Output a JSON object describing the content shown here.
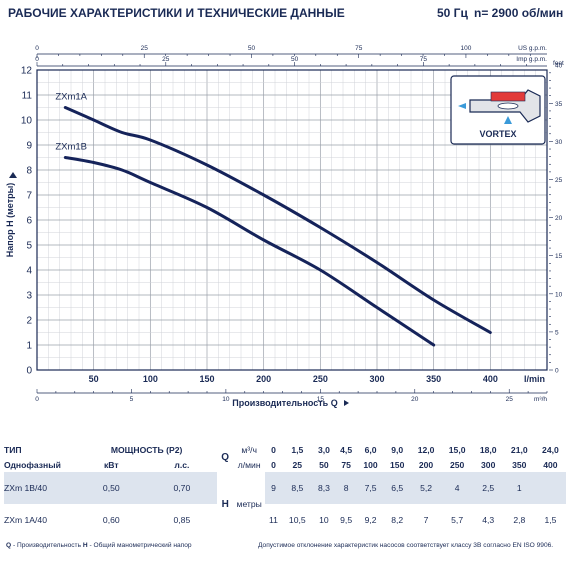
{
  "header": {
    "title": "РАБОЧИЕ ХАРАКТЕРИСТИКИ И ТЕХНИЧЕСКИЕ ДАННЫЕ",
    "freq": "50 Гц",
    "speed": "n= 2900 об/мин"
  },
  "chart_data": {
    "type": "line",
    "xlabel": "Производительность Q",
    "ylabel": "Напор H (метры)",
    "x_unit": "l/min",
    "xlim": [
      0,
      450
    ],
    "ylim": [
      0,
      12
    ],
    "x_ticks": [
      50,
      100,
      150,
      200,
      250,
      300,
      350,
      400
    ],
    "y_ticks": [
      0,
      1,
      2,
      3,
      4,
      5,
      6,
      7,
      8,
      9,
      10,
      11,
      12
    ],
    "grid": true,
    "series": [
      {
        "name": "ZXm1A",
        "x": [
          25,
          50,
          75,
          100,
          150,
          200,
          250,
          300,
          350,
          400
        ],
        "y": [
          10.5,
          10,
          9.5,
          9.2,
          8.2,
          7,
          5.7,
          4.3,
          2.8,
          1.5
        ]
      },
      {
        "name": "ZXm1B",
        "x": [
          25,
          50,
          75,
          100,
          150,
          200,
          250,
          300,
          350
        ],
        "y": [
          8.5,
          8.3,
          8,
          7.5,
          6.5,
          5.2,
          4,
          2.5,
          1
        ]
      }
    ],
    "secondary_axes": {
      "top_us_gpm": {
        "label": "US g.p.m.",
        "ticks": [
          "0",
          "25",
          "50",
          "75",
          "100"
        ],
        "max": 118.9
      },
      "imp_gpm": {
        "label": "Imp g.p.m.",
        "ticks": [
          "0",
          "25",
          "50",
          "75"
        ],
        "max": 99.0
      },
      "feet": {
        "label": "feet",
        "ticks": [
          "0",
          "5",
          "10",
          "15",
          "20",
          "25",
          "30",
          "35",
          "40"
        ],
        "max": 39.37
      },
      "bottom_m3h": {
        "label": "m³/h",
        "ticks": [
          "0",
          "5",
          "10",
          "15",
          "20",
          "25"
        ],
        "max": 27
      }
    },
    "inset_label": "VORTEX"
  },
  "table": {
    "type_header": "ТИП",
    "power_header": "МОЩНОСТЬ (P2)",
    "q_symbol": "Q",
    "q_unit_m3h": "м³/ч",
    "q_unit_lmin": "л/мин",
    "single_phase": "Однофазный",
    "kw": "кВт",
    "hp": "л.с.",
    "h_symbol": "H",
    "h_unit": "метры",
    "q_m3h": [
      "0",
      "1,5",
      "3,0",
      "4,5",
      "6,0",
      "9,0",
      "12,0",
      "15,0",
      "18,0",
      "21,0",
      "24,0"
    ],
    "q_lmin": [
      "0",
      "25",
      "50",
      "75",
      "100",
      "150",
      "200",
      "250",
      "300",
      "350",
      "400"
    ],
    "rows": [
      {
        "model": "ZXm 1B/40",
        "kw": "0,50",
        "hp": "0,70",
        "h": [
          "9",
          "8,5",
          "8,3",
          "8",
          "7,5",
          "6,5",
          "5,2",
          "4",
          "2,5",
          "1",
          ""
        ]
      },
      {
        "model": "ZXm 1A/40",
        "kw": "0,60",
        "hp": "0,85",
        "h": [
          "11",
          "10,5",
          "10",
          "9,5",
          "9,2",
          "8,2",
          "7",
          "5,7",
          "4,3",
          "2,8",
          "1,5"
        ]
      }
    ]
  },
  "footer": {
    "legend_q": "Q",
    "legend_q_text": "- Производительность",
    "legend_h": "H",
    "legend_h_text": "- Общий манометрический напор",
    "note": "Допустимое отклонение характеристик насосов соответствует классу 3B согласно EN ISO 9906."
  }
}
